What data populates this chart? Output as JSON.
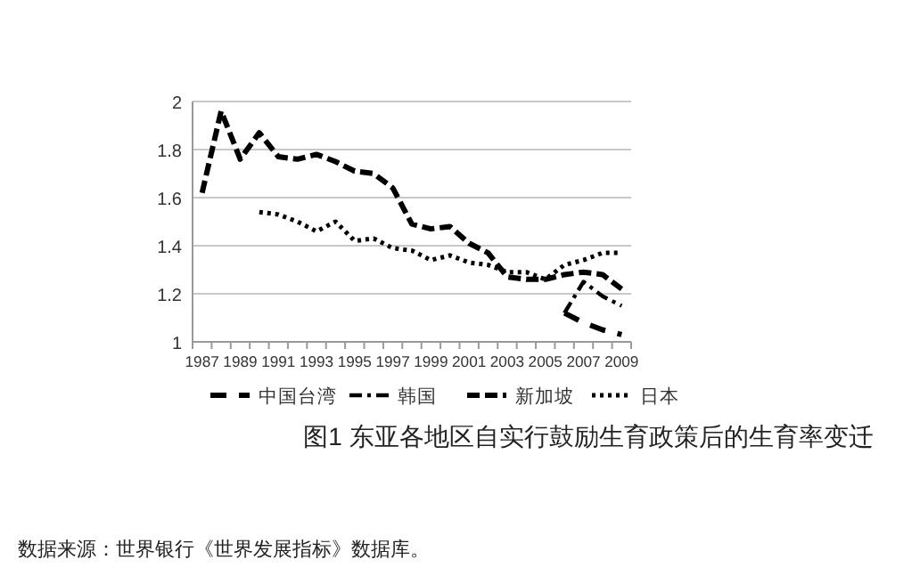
{
  "chart_data": {
    "type": "line",
    "title": "图1 东亚各地区自实行鼓励生育政策后的生育率变迁",
    "annotations": [
      "数据来源：世界银行《世界发展指标》数据库。"
    ],
    "categories": [
      "1987",
      null,
      "1989",
      null,
      "1991",
      null,
      "1993",
      null,
      "1995",
      null,
      "1997",
      null,
      "1999",
      null,
      "2001",
      null,
      "2003",
      null,
      "2005",
      null,
      "2007",
      null,
      "2009"
    ],
    "ylim": [
      1,
      2
    ],
    "yticks": [
      1,
      1.2,
      1.4,
      1.6,
      1.8,
      2
    ],
    "grid": "y",
    "legend": "bottom",
    "series": [
      {
        "name": "中国台湾",
        "color": "#000000",
        "line_style": "longdash",
        "values": [
          null,
          null,
          null,
          null,
          null,
          null,
          null,
          null,
          null,
          null,
          null,
          null,
          null,
          null,
          null,
          null,
          null,
          null,
          null,
          1.12,
          1.08,
          1.05,
          1.03
        ]
      },
      {
        "name": "韩国",
        "color": "#000000",
        "line_style": "dashdot",
        "values": [
          null,
          null,
          null,
          null,
          null,
          null,
          null,
          null,
          null,
          null,
          null,
          null,
          null,
          null,
          null,
          null,
          null,
          null,
          null,
          1.12,
          1.25,
          1.19,
          1.15
        ]
      },
      {
        "name": "新加坡",
        "color": "#000000",
        "line_style": "dashed",
        "values": [
          1.62,
          1.96,
          1.76,
          1.87,
          1.77,
          1.76,
          1.78,
          1.75,
          1.71,
          1.7,
          1.64,
          1.49,
          1.47,
          1.48,
          1.41,
          1.37,
          1.27,
          1.26,
          1.26,
          1.28,
          1.29,
          1.28,
          1.22
        ]
      },
      {
        "name": "日本",
        "color": "#000000",
        "line_style": "dotted",
        "values": [
          null,
          null,
          null,
          1.54,
          1.53,
          1.5,
          1.46,
          1.5,
          1.42,
          1.43,
          1.39,
          1.38,
          1.34,
          1.36,
          1.33,
          1.32,
          1.29,
          1.29,
          1.26,
          1.32,
          1.34,
          1.37,
          1.37
        ]
      }
    ]
  }
}
